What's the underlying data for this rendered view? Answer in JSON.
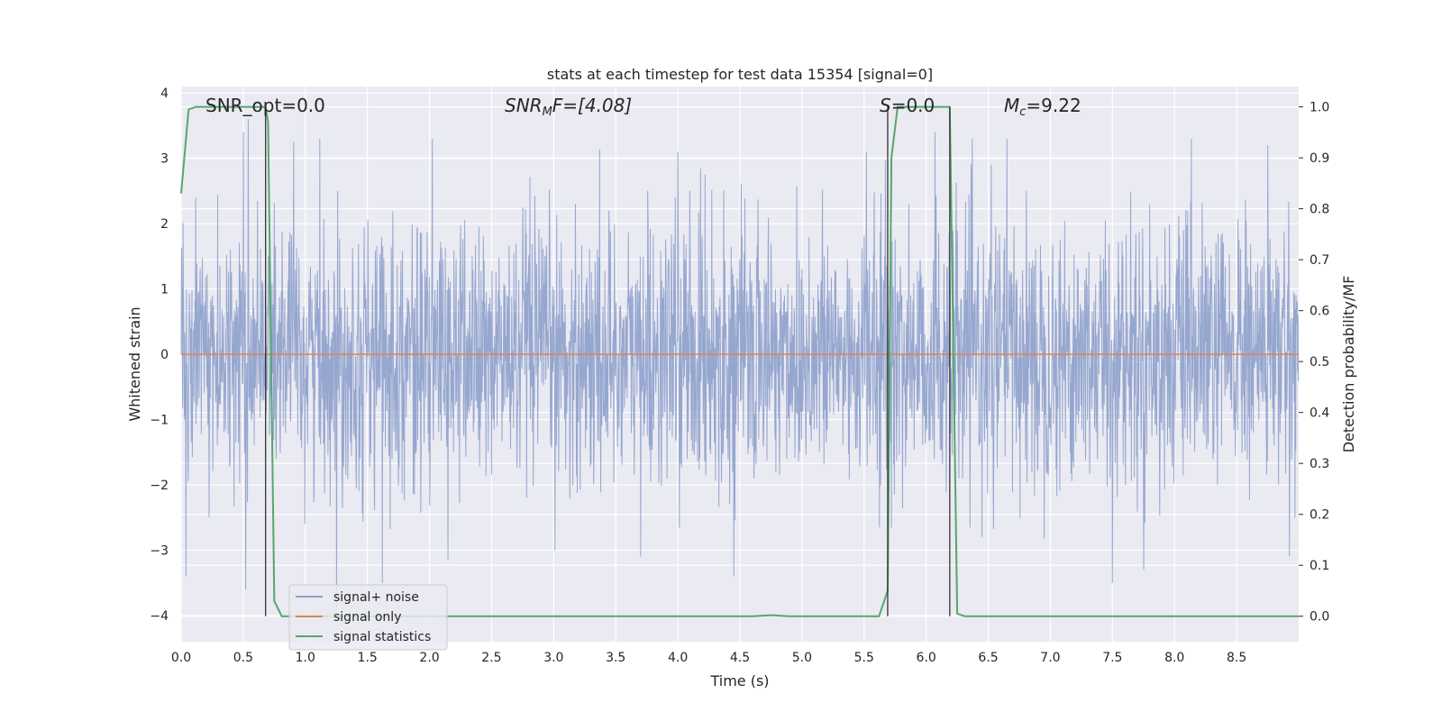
{
  "chart_data": {
    "type": "line",
    "title": "stats at each timestep for test data 15354 [signal=0]",
    "xlabel": "Time (s)",
    "ylabel": "Whitened strain",
    "y2label": "Detection probability/MF",
    "xlim": [
      0.0,
      9.0
    ],
    "ylim": [
      -4.4,
      4.1
    ],
    "y2lim": [
      -0.05,
      1.04
    ],
    "x_ticks": [
      "0.0",
      "0.5",
      "1.0",
      "1.5",
      "2.0",
      "2.5",
      "3.0",
      "3.5",
      "4.0",
      "4.5",
      "5.0",
      "5.5",
      "6.0",
      "6.5",
      "7.0",
      "7.5",
      "8.0",
      "8.5"
    ],
    "y_ticks": [
      "−4",
      "−3",
      "−2",
      "−1",
      "0",
      "1",
      "2",
      "3",
      "4"
    ],
    "y2_ticks": [
      "0.0",
      "0.1",
      "0.2",
      "0.3",
      "0.4",
      "0.5",
      "0.6",
      "0.7",
      "0.8",
      "0.9",
      "1.0"
    ],
    "annotations": {
      "snr_opt": "SNR_opt=0.0",
      "snr_mf_sym": "SNR",
      "snr_mf_sub": "M",
      "snr_mf_rest": "F=[4.08]",
      "s_sym": "S",
      "s_rest": "=0.0",
      "mc_sym": "M",
      "mc_sub": "c",
      "mc_rest": "=9.22"
    },
    "vlines_x": [
      0.68,
      5.69,
      6.19
    ],
    "legend": {
      "placement": "lower-left",
      "entries": [
        "signal+ noise",
        "signal only",
        "signal statistics"
      ]
    },
    "series": [
      {
        "name": "signal+ noise",
        "color": "#8da0cb",
        "axis": "left",
        "noise_std": 1.0,
        "spikes": [
          {
            "x": 0.5,
            "y": 3.4
          },
          {
            "x": 0.54,
            "y": 3.6
          },
          {
            "x": 0.52,
            "y": -3.6
          },
          {
            "x": 0.04,
            "y": -3.4
          },
          {
            "x": 1.25,
            "y": -3.9
          },
          {
            "x": 1.62,
            "y": -3.5
          },
          {
            "x": 4.0,
            "y": 3.1
          },
          {
            "x": 4.45,
            "y": -3.4
          },
          {
            "x": 5.52,
            "y": 3.1
          },
          {
            "x": 6.07,
            "y": 3.4
          },
          {
            "x": 6.65,
            "y": 3.3
          },
          {
            "x": 7.5,
            "y": -3.5
          },
          {
            "x": 8.75,
            "y": 3.2
          },
          {
            "x": 3.7,
            "y": -3.1
          }
        ]
      },
      {
        "name": "signal only",
        "color": "#dd8452",
        "axis": "left",
        "x": [
          0.0,
          9.0
        ],
        "y": [
          0.0,
          0.0
        ]
      },
      {
        "name": "signal statistics",
        "color": "#55a868",
        "axis": "right",
        "x": [
          0.0,
          0.06,
          0.12,
          0.5,
          0.62,
          0.68,
          0.7,
          0.75,
          0.81,
          0.9,
          4.6,
          4.75,
          4.9,
          5.62,
          5.69,
          5.72,
          5.77,
          6.05,
          6.19,
          6.25,
          6.31,
          9.0
        ],
        "y": [
          0.83,
          0.995,
          1.0,
          1.0,
          1.0,
          1.0,
          0.97,
          0.03,
          0.0,
          0.0,
          0.0,
          0.002,
          0.0,
          0.0,
          0.05,
          0.9,
          1.0,
          1.0,
          1.0,
          0.005,
          0.0,
          0.0
        ]
      }
    ]
  }
}
